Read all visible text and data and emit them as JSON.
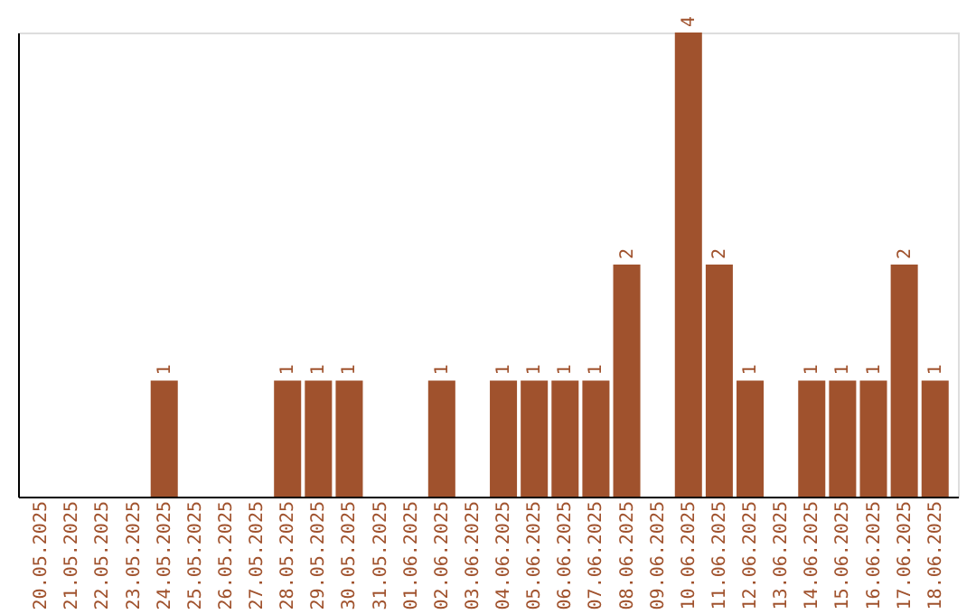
{
  "chart_data": {
    "type": "bar",
    "categories": [
      "20.05.2025",
      "21.05.2025",
      "22.05.2025",
      "23.05.2025",
      "24.05.2025",
      "25.05.2025",
      "26.05.2025",
      "27.05.2025",
      "28.05.2025",
      "29.05.2025",
      "30.05.2025",
      "31.05.2025",
      "01.06.2025",
      "02.06.2025",
      "03.06.2025",
      "04.06.2025",
      "05.06.2025",
      "06.06.2025",
      "07.06.2025",
      "08.06.2025",
      "09.06.2025",
      "10.06.2025",
      "11.06.2025",
      "12.06.2025",
      "13.06.2025",
      "14.06.2025",
      "15.06.2025",
      "16.06.2025",
      "17.06.2025",
      "18.06.2025"
    ],
    "values": [
      0,
      0,
      0,
      0,
      1,
      0,
      0,
      0,
      1,
      1,
      1,
      0,
      0,
      1,
      0,
      1,
      1,
      1,
      1,
      2,
      0,
      4,
      2,
      1,
      0,
      1,
      1,
      1,
      2,
      1
    ],
    "value_labels": [
      null,
      null,
      null,
      null,
      "1",
      null,
      null,
      null,
      "1",
      "1",
      "1",
      null,
      null,
      "1",
      null,
      "1",
      "1",
      "1",
      "1",
      "2",
      null,
      "4",
      "2",
      "1",
      null,
      "1",
      "1",
      "1",
      "2",
      "1"
    ],
    "color": "#a0522d",
    "tick_labels": "x",
    "grid": false
  }
}
